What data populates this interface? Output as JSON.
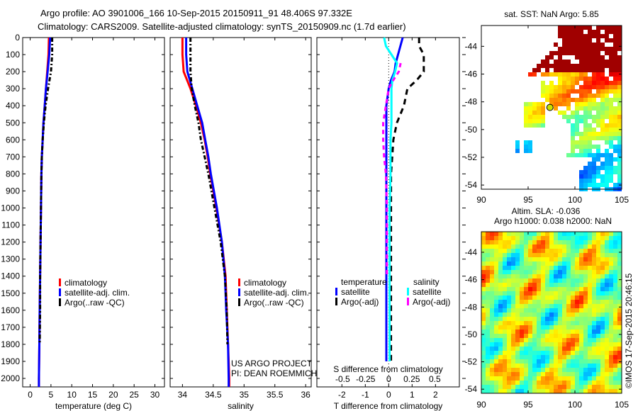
{
  "header": {
    "line1": "Argo profile: AO 3901006_166 10-Sep-2015 20150911_91 48.406S 97.332E",
    "line2": "Climatology: CARS2009. Satellite-adjusted climatology: synTS_20150909.nc (1.7d earlier)"
  },
  "credit": {
    "project": "US ARGO PROJECT",
    "pi": "PI: DEAN ROEMMICH",
    "watermark": "©IMOS 17-Sep-2015 20:46:15"
  },
  "colors": {
    "climatology": "#ff0000",
    "satellite": "#0000ff",
    "argo": "#000000",
    "sal_satellite": "#00ffff",
    "sal_argo": "#ff00ff"
  },
  "chart_data": [
    {
      "type": "line",
      "name": "temperature",
      "xlabel": "temperature (deg C)",
      "ylabel": "",
      "xlim": [
        -1.8,
        32.3
      ],
      "ylim": [
        2055,
        0
      ],
      "xticks": [
        "0",
        "5",
        "10",
        "15",
        "20",
        "25",
        "30"
      ],
      "yticks": [
        "0",
        "100",
        "200",
        "300",
        "400",
        "500",
        "600",
        "700",
        "800",
        "900",
        "1000",
        "1100",
        "1200",
        "1300",
        "1400",
        "1500",
        "1600",
        "1700",
        "1800",
        "1900",
        "2000"
      ],
      "depth": [
        0,
        100,
        200,
        300,
        400,
        500,
        600,
        700,
        800,
        1000,
        1200,
        1400,
        1600,
        1800,
        2000,
        2050
      ],
      "series": [
        {
          "name": "climatology",
          "values": [
            4.5,
            4.4,
            4.1,
            3.8,
            3.5,
            3.2,
            3.0,
            2.8,
            2.7,
            2.6,
            2.5,
            2.4,
            2.3,
            2.2,
            2.1,
            2.1
          ]
        },
        {
          "name": "satellite-adj. clim.",
          "values": [
            4.8,
            4.6,
            4.2,
            3.8,
            3.5,
            3.2,
            3.0,
            2.8,
            2.7,
            2.6,
            2.5,
            2.4,
            2.3,
            2.2,
            2.1,
            2.1
          ]
        },
        {
          "name": "Argo(..raw -QC)",
          "values": [
            5.3,
            5.3,
            5.0,
            4.3,
            3.7,
            3.3,
            3.0,
            2.8,
            2.7,
            2.6,
            2.5,
            2.4,
            2.4,
            2.3,
            null,
            null
          ]
        }
      ],
      "legend": [
        "climatology",
        "satellite-adj. clim.",
        "Argo(..raw -QC)"
      ]
    },
    {
      "type": "line",
      "name": "salinity",
      "xlabel": "salinity",
      "xlim": [
        33.8,
        36.09
      ],
      "ylim": [
        2055,
        0
      ],
      "xticks": [
        "34",
        "34.5",
        "35",
        "35.5",
        "36"
      ],
      "depth": [
        0,
        100,
        200,
        300,
        400,
        500,
        600,
        700,
        800,
        1000,
        1200,
        1400,
        1600,
        1800,
        2000,
        2050
      ],
      "series": [
        {
          "name": "climatology",
          "values": [
            34.0,
            34.0,
            34.02,
            34.13,
            34.22,
            34.3,
            34.36,
            34.41,
            34.45,
            34.55,
            34.64,
            34.7,
            34.72,
            34.74,
            34.76,
            34.76
          ]
        },
        {
          "name": "satellite-adj. clim.",
          "values": [
            34.06,
            34.06,
            34.08,
            34.16,
            34.24,
            34.32,
            34.37,
            34.42,
            34.46,
            34.56,
            34.64,
            34.69,
            34.71,
            34.74,
            34.75,
            34.75
          ]
        },
        {
          "name": "Argo(..raw -QC)",
          "values": [
            34.13,
            34.13,
            34.13,
            34.15,
            34.2,
            34.26,
            34.3,
            34.36,
            34.42,
            34.52,
            34.62,
            34.69,
            34.72,
            34.73,
            null,
            null
          ]
        }
      ],
      "legend": [
        "climatology",
        "satellite-adj. clim.",
        "Argo(..raw -QC)"
      ]
    },
    {
      "type": "line",
      "name": "difference",
      "xlabel": "T difference from climatology",
      "x2label": "S difference from climatology",
      "xlim": [
        -3.07,
        3.02
      ],
      "x2lim": [
        -0.78,
        0.77
      ],
      "ylim": [
        2055,
        0
      ],
      "xticks": [
        "-2",
        "-1",
        "0",
        "1",
        "2"
      ],
      "x2ticks": [
        "-0.5",
        "-0.25",
        "0",
        "0.25",
        "0.5"
      ],
      "depth": [
        0,
        50,
        100,
        150,
        200,
        250,
        300,
        400,
        500,
        600,
        700,
        800,
        1000,
        1200,
        1400,
        1600,
        1800,
        1900
      ],
      "series": [
        {
          "name": "temperature satellite",
          "axis": "T",
          "values": [
            0.6,
            0.5,
            0.4,
            0.3,
            0.25,
            0.1,
            0.0,
            -0.1,
            -0.1,
            -0.1,
            -0.1,
            -0.1,
            -0.1,
            -0.1,
            -0.1,
            -0.1,
            -0.1,
            -0.1
          ]
        },
        {
          "name": "temperature Argo(-adj)",
          "axis": "T",
          "values": [
            1.3,
            1.3,
            1.5,
            1.5,
            1.5,
            1.2,
            0.8,
            0.65,
            0.35,
            0.2,
            0.15,
            0.1,
            0.1,
            0.1,
            0.1,
            0.1,
            0.1,
            0.1
          ]
        },
        {
          "name": "salinity satellite",
          "axis": "S",
          "values": [
            -0.05,
            -0.03,
            0.03,
            0.09,
            0.07,
            0.04,
            0.03,
            0.03,
            0.03,
            0.02,
            0.02,
            0.02,
            0.01,
            0.01,
            0.01,
            0.01,
            0.01,
            0.01
          ]
        },
        {
          "name": "salinity Argo(-adj)",
          "axis": "S",
          "values": [
            null,
            null,
            null,
            0.13,
            0.11,
            0.05,
            0.0,
            -0.03,
            -0.06,
            -0.06,
            -0.05,
            -0.03,
            -0.02,
            -0.02,
            -0.02,
            null,
            null,
            null
          ]
        }
      ],
      "legend": {
        "temperature_header": "temperature",
        "salinity_header": "salinity",
        "t_sat": "satellite",
        "t_argo": "Argo(-adj)",
        "s_sat": "satellite",
        "s_argo": "Argo(-adj)"
      }
    },
    {
      "type": "heatmap",
      "name": "sst-map",
      "title": "sat. SST: NaN Argo: 5.85",
      "xlim": [
        90,
        105
      ],
      "ylim": [
        -54.3,
        -42.5
      ],
      "xticks": [
        "90",
        "95",
        "100",
        "105"
      ],
      "yticks": [
        "-44",
        "-46",
        "-48",
        "-50",
        "-52",
        "-54"
      ],
      "argo_position": {
        "lon": 97.332,
        "lat": -48.406
      }
    },
    {
      "type": "heatmap",
      "name": "sla-map",
      "title1": "Altim. SLA: -0.036",
      "title2": "Argo h1000: 0.038 h2000: NaN",
      "xlim": [
        90,
        105
      ],
      "ylim": [
        -54.3,
        -42.5
      ],
      "xticks": [
        "90",
        "95",
        "100",
        "105"
      ],
      "yticks": [
        "-44",
        "-46",
        "-48",
        "-50",
        "-52",
        "-54"
      ]
    }
  ]
}
